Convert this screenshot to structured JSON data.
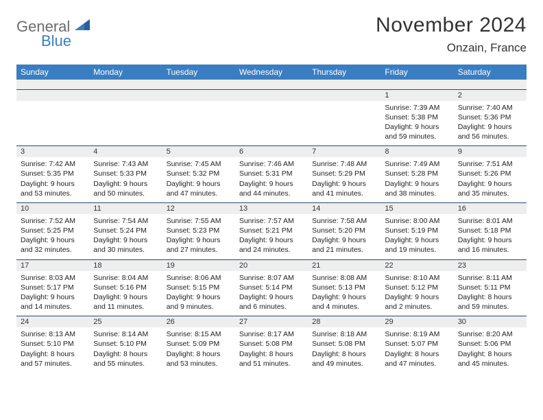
{
  "logo": {
    "word1": "General",
    "word2": "Blue"
  },
  "title": "November 2024",
  "location": "Onzain, France",
  "colors": {
    "header_bg": "#3a7ec1",
    "header_text": "#ffffff",
    "daynum_bg": "#eeeeee",
    "border": "#2b4a6f",
    "text": "#222222"
  },
  "day_headers": [
    "Sunday",
    "Monday",
    "Tuesday",
    "Wednesday",
    "Thursday",
    "Friday",
    "Saturday"
  ],
  "weeks": [
    {
      "nums": [
        "",
        "",
        "",
        "",
        "",
        "1",
        "2"
      ],
      "cells": [
        null,
        null,
        null,
        null,
        null,
        {
          "sr": "Sunrise: 7:39 AM",
          "ss": "Sunset: 5:38 PM",
          "d1": "Daylight: 9 hours",
          "d2": "and 59 minutes."
        },
        {
          "sr": "Sunrise: 7:40 AM",
          "ss": "Sunset: 5:36 PM",
          "d1": "Daylight: 9 hours",
          "d2": "and 56 minutes."
        }
      ]
    },
    {
      "nums": [
        "3",
        "4",
        "5",
        "6",
        "7",
        "8",
        "9"
      ],
      "cells": [
        {
          "sr": "Sunrise: 7:42 AM",
          "ss": "Sunset: 5:35 PM",
          "d1": "Daylight: 9 hours",
          "d2": "and 53 minutes."
        },
        {
          "sr": "Sunrise: 7:43 AM",
          "ss": "Sunset: 5:33 PM",
          "d1": "Daylight: 9 hours",
          "d2": "and 50 minutes."
        },
        {
          "sr": "Sunrise: 7:45 AM",
          "ss": "Sunset: 5:32 PM",
          "d1": "Daylight: 9 hours",
          "d2": "and 47 minutes."
        },
        {
          "sr": "Sunrise: 7:46 AM",
          "ss": "Sunset: 5:31 PM",
          "d1": "Daylight: 9 hours",
          "d2": "and 44 minutes."
        },
        {
          "sr": "Sunrise: 7:48 AM",
          "ss": "Sunset: 5:29 PM",
          "d1": "Daylight: 9 hours",
          "d2": "and 41 minutes."
        },
        {
          "sr": "Sunrise: 7:49 AM",
          "ss": "Sunset: 5:28 PM",
          "d1": "Daylight: 9 hours",
          "d2": "and 38 minutes."
        },
        {
          "sr": "Sunrise: 7:51 AM",
          "ss": "Sunset: 5:26 PM",
          "d1": "Daylight: 9 hours",
          "d2": "and 35 minutes."
        }
      ]
    },
    {
      "nums": [
        "10",
        "11",
        "12",
        "13",
        "14",
        "15",
        "16"
      ],
      "cells": [
        {
          "sr": "Sunrise: 7:52 AM",
          "ss": "Sunset: 5:25 PM",
          "d1": "Daylight: 9 hours",
          "d2": "and 32 minutes."
        },
        {
          "sr": "Sunrise: 7:54 AM",
          "ss": "Sunset: 5:24 PM",
          "d1": "Daylight: 9 hours",
          "d2": "and 30 minutes."
        },
        {
          "sr": "Sunrise: 7:55 AM",
          "ss": "Sunset: 5:23 PM",
          "d1": "Daylight: 9 hours",
          "d2": "and 27 minutes."
        },
        {
          "sr": "Sunrise: 7:57 AM",
          "ss": "Sunset: 5:21 PM",
          "d1": "Daylight: 9 hours",
          "d2": "and 24 minutes."
        },
        {
          "sr": "Sunrise: 7:58 AM",
          "ss": "Sunset: 5:20 PM",
          "d1": "Daylight: 9 hours",
          "d2": "and 21 minutes."
        },
        {
          "sr": "Sunrise: 8:00 AM",
          "ss": "Sunset: 5:19 PM",
          "d1": "Daylight: 9 hours",
          "d2": "and 19 minutes."
        },
        {
          "sr": "Sunrise: 8:01 AM",
          "ss": "Sunset: 5:18 PM",
          "d1": "Daylight: 9 hours",
          "d2": "and 16 minutes."
        }
      ]
    },
    {
      "nums": [
        "17",
        "18",
        "19",
        "20",
        "21",
        "22",
        "23"
      ],
      "cells": [
        {
          "sr": "Sunrise: 8:03 AM",
          "ss": "Sunset: 5:17 PM",
          "d1": "Daylight: 9 hours",
          "d2": "and 14 minutes."
        },
        {
          "sr": "Sunrise: 8:04 AM",
          "ss": "Sunset: 5:16 PM",
          "d1": "Daylight: 9 hours",
          "d2": "and 11 minutes."
        },
        {
          "sr": "Sunrise: 8:06 AM",
          "ss": "Sunset: 5:15 PM",
          "d1": "Daylight: 9 hours",
          "d2": "and 9 minutes."
        },
        {
          "sr": "Sunrise: 8:07 AM",
          "ss": "Sunset: 5:14 PM",
          "d1": "Daylight: 9 hours",
          "d2": "and 6 minutes."
        },
        {
          "sr": "Sunrise: 8:08 AM",
          "ss": "Sunset: 5:13 PM",
          "d1": "Daylight: 9 hours",
          "d2": "and 4 minutes."
        },
        {
          "sr": "Sunrise: 8:10 AM",
          "ss": "Sunset: 5:12 PM",
          "d1": "Daylight: 9 hours",
          "d2": "and 2 minutes."
        },
        {
          "sr": "Sunrise: 8:11 AM",
          "ss": "Sunset: 5:11 PM",
          "d1": "Daylight: 8 hours",
          "d2": "and 59 minutes."
        }
      ]
    },
    {
      "nums": [
        "24",
        "25",
        "26",
        "27",
        "28",
        "29",
        "30"
      ],
      "cells": [
        {
          "sr": "Sunrise: 8:13 AM",
          "ss": "Sunset: 5:10 PM",
          "d1": "Daylight: 8 hours",
          "d2": "and 57 minutes."
        },
        {
          "sr": "Sunrise: 8:14 AM",
          "ss": "Sunset: 5:10 PM",
          "d1": "Daylight: 8 hours",
          "d2": "and 55 minutes."
        },
        {
          "sr": "Sunrise: 8:15 AM",
          "ss": "Sunset: 5:09 PM",
          "d1": "Daylight: 8 hours",
          "d2": "and 53 minutes."
        },
        {
          "sr": "Sunrise: 8:17 AM",
          "ss": "Sunset: 5:08 PM",
          "d1": "Daylight: 8 hours",
          "d2": "and 51 minutes."
        },
        {
          "sr": "Sunrise: 8:18 AM",
          "ss": "Sunset: 5:08 PM",
          "d1": "Daylight: 8 hours",
          "d2": "and 49 minutes."
        },
        {
          "sr": "Sunrise: 8:19 AM",
          "ss": "Sunset: 5:07 PM",
          "d1": "Daylight: 8 hours",
          "d2": "and 47 minutes."
        },
        {
          "sr": "Sunrise: 8:20 AM",
          "ss": "Sunset: 5:06 PM",
          "d1": "Daylight: 8 hours",
          "d2": "and 45 minutes."
        }
      ]
    }
  ]
}
